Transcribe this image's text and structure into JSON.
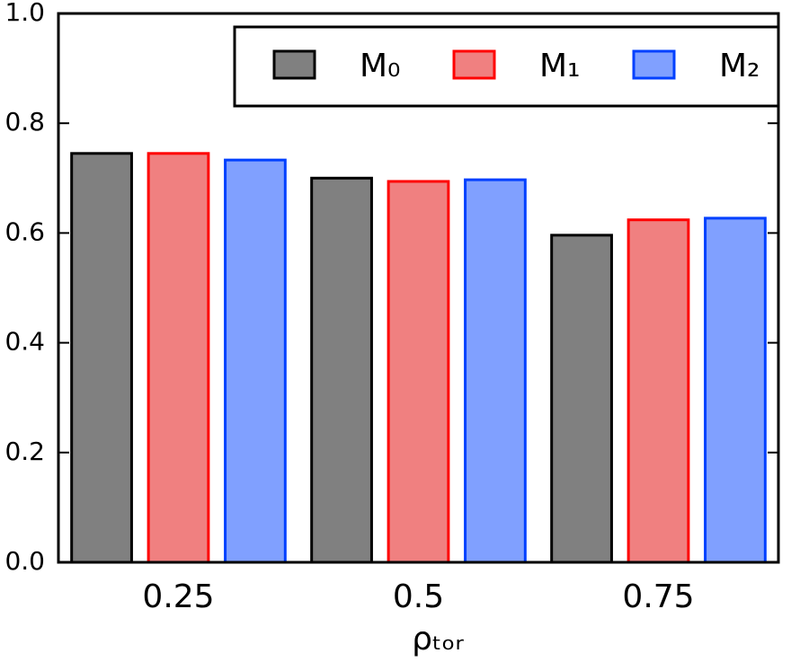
{
  "chart_data": {
    "type": "bar",
    "x_label": "ρₜₒᵣ",
    "categories": [
      "0.25",
      "0.5",
      "0.75"
    ],
    "series": [
      {
        "name": "M₀",
        "color": "#808080",
        "edgecolor": "#000000",
        "values": [
          0.745,
          0.7,
          0.596
        ]
      },
      {
        "name": "M₁",
        "color": "#f08080",
        "edgecolor": "#ff0000",
        "values": [
          0.745,
          0.694,
          0.624
        ]
      },
      {
        "name": "M₂",
        "color": "#80a0ff",
        "edgecolor": "#0040ff",
        "values": [
          0.733,
          0.697,
          0.627
        ]
      }
    ],
    "ylim": [
      0,
      1
    ],
    "yticks": [
      {
        "value": 0,
        "label": "0.0"
      },
      0.2,
      0.4,
      0.6,
      0.8,
      {
        "value": 1,
        "label": "1.0"
      }
    ],
    "legend": "upper right"
  }
}
